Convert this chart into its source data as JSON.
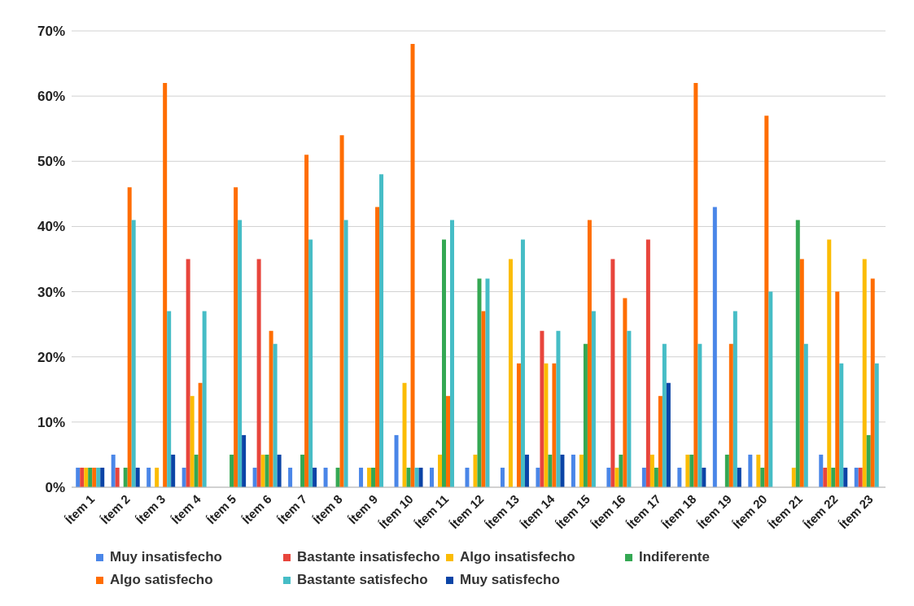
{
  "chart_data": {
    "type": "bar",
    "categories": [
      "Ítem 1",
      "Ítem 2",
      "Ítem 3",
      "Ítem 4",
      "Ítem 5",
      "Ítem 6",
      "Ítem 7",
      "Ítem 8",
      "Ítem 9",
      "Ítem 10",
      "Ítem 11",
      "Ítem 12",
      "Ítem 13",
      "Ítem 14",
      "Ítem 15",
      "Ítem 16",
      "Ítem 17",
      "Ítem 18",
      "Ítem 19",
      "Ítem 20",
      "Ítem 21",
      "Ítem 22",
      "Ítem 23"
    ],
    "series": [
      {
        "name": "Muy insatisfecho",
        "color": "#4a86e8",
        "values": [
          3,
          5,
          3,
          3,
          0,
          3,
          3,
          3,
          3,
          8,
          3,
          3,
          3,
          3,
          5,
          3,
          3,
          3,
          43,
          5,
          0,
          5,
          3
        ]
      },
      {
        "name": "Bastante insatisfecho",
        "color": "#e8453c",
        "values": [
          3,
          3,
          0,
          35,
          0,
          35,
          0,
          0,
          0,
          0,
          0,
          0,
          0,
          24,
          0,
          35,
          38,
          0,
          0,
          0,
          0,
          3,
          3
        ]
      },
      {
        "name": "Algo insatisfecho",
        "color": "#fbbc04",
        "values": [
          3,
          0,
          3,
          14,
          0,
          5,
          0,
          0,
          3,
          16,
          5,
          5,
          35,
          19,
          5,
          3,
          5,
          5,
          0,
          5,
          3,
          38,
          35
        ]
      },
      {
        "name": "Indiferente",
        "color": "#34a853",
        "values": [
          3,
          3,
          0,
          5,
          5,
          5,
          5,
          3,
          3,
          3,
          38,
          32,
          0,
          5,
          22,
          5,
          3,
          5,
          5,
          3,
          41,
          3,
          8
        ]
      },
      {
        "name": "Algo satisfecho",
        "color": "#ff6d01",
        "values": [
          3,
          46,
          62,
          16,
          46,
          24,
          51,
          54,
          43,
          68,
          14,
          27,
          19,
          19,
          41,
          29,
          14,
          62,
          22,
          57,
          35,
          30,
          32
        ]
      },
      {
        "name": "Bastante satisfecho",
        "color": "#46bdc6",
        "values": [
          3,
          41,
          27,
          27,
          41,
          22,
          38,
          41,
          48,
          3,
          41,
          32,
          38,
          24,
          27,
          24,
          22,
          22,
          27,
          30,
          22,
          19,
          19
        ]
      },
      {
        "name": "Muy satisfecho",
        "color": "#0b44a6",
        "values": [
          3,
          3,
          5,
          0,
          8,
          5,
          3,
          0,
          0,
          3,
          0,
          0,
          5,
          5,
          0,
          0,
          16,
          3,
          3,
          0,
          0,
          3,
          0
        ]
      }
    ],
    "ylim": [
      0,
      70
    ],
    "yticks": [
      {
        "value": 0,
        "label": "0%"
      },
      {
        "value": 10,
        "label": "10%"
      },
      {
        "value": 20,
        "label": "20%"
      },
      {
        "value": 30,
        "label": "30%"
      },
      {
        "value": 40,
        "label": "40%"
      },
      {
        "value": 50,
        "label": "50%"
      },
      {
        "value": 60,
        "label": "60%"
      },
      {
        "value": 70,
        "label": "70%"
      }
    ],
    "grid": "y",
    "legend": "bottom"
  }
}
